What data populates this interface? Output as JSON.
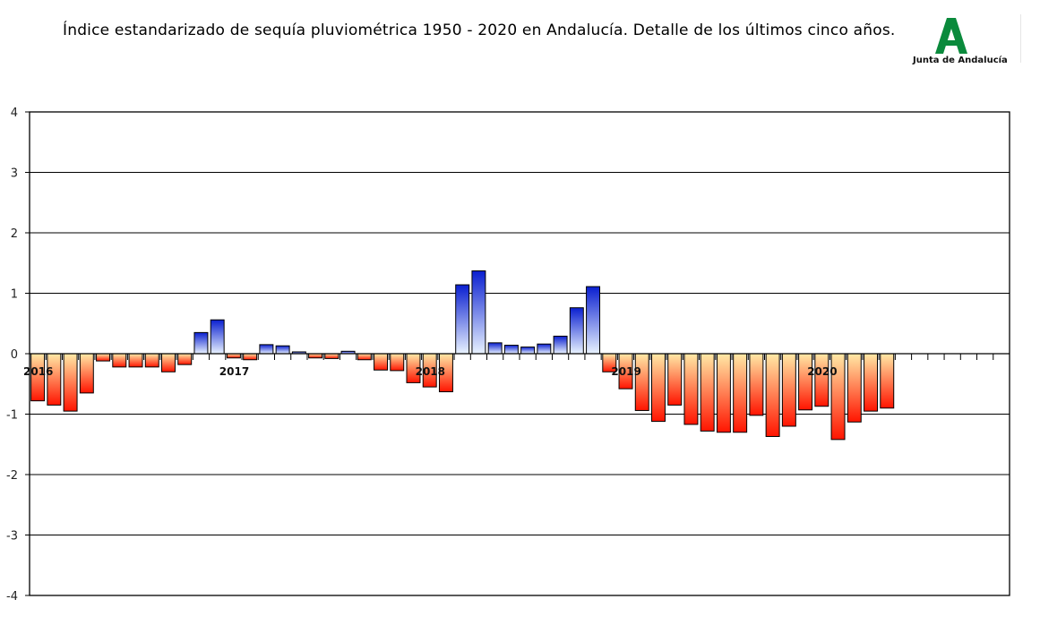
{
  "header": {
    "title": "Índice estandarizado de sequía pluviométrica 1950 - 2020 en Andalucía. Detalle de los últimos cinco años.",
    "logo_text": "Junta de Andalucía",
    "logo_color": "#0a8a3c"
  },
  "chart_data": {
    "type": "bar",
    "title": "Índice estandarizado de sequía pluviométrica 1950 - 2020 en Andalucía. Detalle de los últimos cinco años.",
    "xlabel": "",
    "ylabel": "",
    "ylim": [
      -4,
      4
    ],
    "yticks": [
      "4",
      "3",
      "2",
      "1",
      "0",
      "-1",
      "-2",
      "-3",
      "-4"
    ],
    "year_labels": [
      {
        "label": "2016",
        "index": 0
      },
      {
        "label": "2017",
        "index": 12
      },
      {
        "label": "2018",
        "index": 24
      },
      {
        "label": "2019",
        "index": 36
      },
      {
        "label": "2020",
        "index": 48
      }
    ],
    "slots": 60,
    "grid": true,
    "legend": "none",
    "colors": {
      "positive_top": "#0a1fd0",
      "positive_bottom": "#e8f2ff",
      "negative_top": "#ffe9a6",
      "negative_bottom": "#ff1400"
    },
    "values": [
      -0.78,
      -0.85,
      -0.95,
      -0.65,
      -0.12,
      -0.22,
      -0.22,
      -0.22,
      -0.3,
      -0.18,
      0.35,
      0.56,
      -0.07,
      -0.1,
      0.15,
      0.13,
      0.03,
      -0.07,
      -0.08,
      0.04,
      -0.1,
      -0.27,
      -0.28,
      -0.48,
      -0.55,
      -0.63,
      1.14,
      1.37,
      0.18,
      0.14,
      0.11,
      0.16,
      0.29,
      0.76,
      1.11,
      -0.3,
      -0.58,
      -0.94,
      -1.12,
      -0.85,
      -1.17,
      -1.28,
      -1.3,
      -1.3,
      -1.02,
      -1.37,
      -1.2,
      -0.93,
      -0.87,
      -1.42,
      -1.13,
      -0.95,
      -0.9
    ]
  }
}
